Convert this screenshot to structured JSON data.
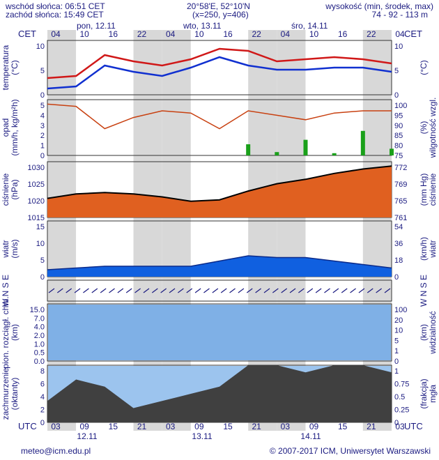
{
  "header": {
    "sunrise": "wschód słońca: 06:51 CET",
    "sunset": "zachód słońca: 15:49 CET",
    "coords": "20°58'E, 52°10'N",
    "grid": "(x=250,  y=406)",
    "elev_label": "wysokość (min, środek, max)",
    "elev_values": "74 - 92 - 113 m"
  },
  "top_axis": {
    "tz": "CET",
    "hours": [
      "04",
      "10",
      "16",
      "22",
      "04",
      "10",
      "16",
      "22",
      "04",
      "10",
      "16",
      "22",
      "04"
    ],
    "days": [
      "pon, 12.11",
      "wto, 13.11",
      "śro, 14.11"
    ]
  },
  "bottom_axis": {
    "tz": "UTC",
    "hours": [
      "03",
      "09",
      "15",
      "21",
      "03",
      "09",
      "15",
      "21",
      "03",
      "09",
      "15",
      "21",
      "03"
    ],
    "dates": [
      "12.11",
      "13.11",
      "14.11"
    ]
  },
  "panels": [
    {
      "id": "temperature",
      "left_label": "temperatura\n(°C)",
      "right_label": "(°C)",
      "left_ticks": [
        "0",
        "5",
        "10"
      ],
      "right_ticks": [
        "0",
        "5",
        "10"
      ]
    },
    {
      "id": "precip",
      "left_label": "opad\n(mm/h, kg/m²h)",
      "right_label": "(%)\nwilgotność wzgl.",
      "left_ticks": [
        "0",
        "1",
        "2",
        "3",
        "4",
        "5"
      ],
      "right_ticks": [
        "75",
        "80",
        "85",
        "90",
        "95",
        "100"
      ]
    },
    {
      "id": "pressure",
      "left_label": "ciśnienie\n(hPa)",
      "right_label": "(mm Hg)\nciśnienie",
      "left_ticks": [
        "1015",
        "1020",
        "1025",
        "1030"
      ],
      "right_ticks": [
        "761",
        "765",
        "769",
        "772"
      ]
    },
    {
      "id": "wind",
      "left_label": "wiatr\n(m/s)",
      "right_label": "(km/h)\nwiatr",
      "left_ticks": [
        "0",
        "5",
        "10",
        "15"
      ],
      "right_ticks": [
        "0",
        "18",
        "36",
        "54"
      ]
    },
    {
      "id": "wind_dir",
      "left_label": "W N S E",
      "right_label": "W N S E",
      "left_ticks": [],
      "right_ticks": []
    },
    {
      "id": "visibility",
      "left_label": "pion. rozciągł. chm.\n(km)",
      "right_label": "(km)\nwidzialność",
      "left_ticks": [
        "0.0",
        "0.5",
        "1.0",
        "2.0",
        "4.0",
        "7.0",
        "15.0"
      ],
      "right_ticks": [
        "0",
        "1",
        "5",
        "10",
        "20",
        "100"
      ]
    },
    {
      "id": "cloud",
      "left_label": "zachmurzenie\n(oktanty)",
      "right_label": "(frakcja)\nmgła",
      "left_ticks": [
        "0",
        "2",
        "4",
        "6",
        "8"
      ],
      "right_ticks": [
        "0",
        "0.25",
        "0.5",
        "0.75",
        "1"
      ]
    }
  ],
  "chart_data": {
    "type": "line",
    "x": [
      "12.11 03",
      "12.11 09",
      "12.11 15",
      "12.11 21",
      "13.11 03",
      "13.11 09",
      "13.11 15",
      "13.11 21",
      "14.11 03",
      "14.11 09",
      "14.11 15",
      "14.11 21",
      "15.11 03"
    ],
    "series": [
      {
        "name": "temperatura max",
        "values": [
          4.0,
          4.5,
          9.5,
          8.0,
          7.0,
          8.5,
          11.0,
          10.5,
          8.0,
          8.5,
          9.0,
          8.5,
          7.5
        ]
      },
      {
        "name": "temperatura min",
        "values": [
          1.5,
          2.0,
          7.0,
          5.5,
          4.5,
          6.5,
          9.0,
          7.0,
          6.0,
          6.0,
          6.5,
          6.5,
          5.5
        ]
      },
      {
        "name": "wilgotność wzgl.",
        "values": [
          98,
          97,
          87,
          92,
          95,
          94,
          87,
          95,
          93,
          91,
          94,
          95,
          95
        ]
      },
      {
        "name": "ciśnienie",
        "values": [
          1021.5,
          1023.0,
          1023.5,
          1023.0,
          1022.0,
          1020.5,
          1021.0,
          1024.0,
          1026.5,
          1028.0,
          1030.0,
          1031.5,
          1032.5
        ]
      },
      {
        "name": "wiatr",
        "values": [
          2.0,
          2.5,
          3.0,
          3.0,
          3.0,
          3.0,
          4.5,
          6.0,
          5.5,
          5.5,
          4.5,
          3.5,
          2.5
        ]
      },
      {
        "name": "zachmurzenie",
        "values": [
          3,
          6,
          5,
          2,
          3,
          4,
          5,
          8,
          8,
          7,
          8,
          8,
          7
        ]
      }
    ],
    "precip_bars": [
      0,
      0,
      0,
      0,
      0,
      0,
      0,
      1.0,
      0.3,
      1.4,
      0.2,
      2.2,
      0.6
    ],
    "ylim_temperature": [
      0,
      13
    ],
    "ylim_precip": [
      0,
      5
    ],
    "ylim_pressure": [
      1015,
      1034
    ],
    "ylim_wind": [
      0,
      16
    ],
    "ylim_cloud": [
      0,
      8
    ]
  },
  "footer": {
    "email": "meteo@icm.edu.pl",
    "copyright": "© 2007-2017 ICM, Uniwersytet Warszawski"
  },
  "colors": {
    "text": "#1a1a80",
    "temp_max": "#d01818",
    "temp_min": "#1030d0",
    "humidity": "#c84010",
    "precip": "#1aa01a",
    "pressure_line": "#000000",
    "wind_fill": "#1060e0",
    "cloud_fill": "#404040"
  }
}
